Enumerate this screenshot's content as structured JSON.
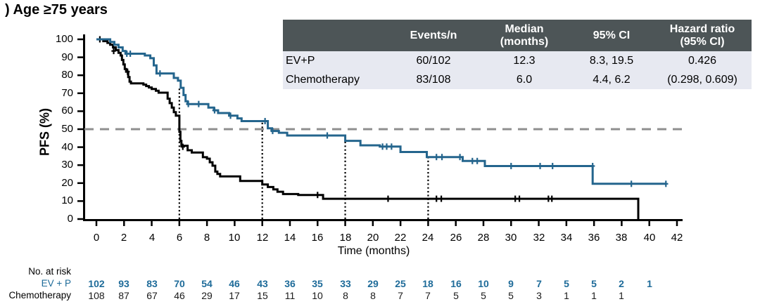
{
  "title": ") Age ≥75 years",
  "colors": {
    "evp_curve": "#24658D",
    "chemo_curve": "#000000",
    "risk_number_blue": "#1E6B99",
    "median_dashed_line": "#8F8F8F",
    "table_header_bg": "#4D5557",
    "table_header_text": "#FFFFFF",
    "table_row_bg": "#E7E9F1"
  },
  "stats_table": {
    "headers": [
      "",
      "Events/n",
      "Median\n(months)",
      "95% CI",
      "Hazard ratio\n(95% CI)"
    ],
    "rows": [
      {
        "cells": [
          "EV+P",
          "60/102",
          "12.3",
          "8.3, 19.5",
          "0.426"
        ]
      },
      {
        "cells": [
          "Chemotherapy",
          "83/108",
          "6.0",
          "4.4, 6.2",
          "(0.298, 0.609)"
        ]
      }
    ]
  },
  "risk_table": {
    "title": "No. at risk",
    "time_step": 2,
    "rows": [
      {
        "label": "EV + P",
        "values": [
          102,
          93,
          83,
          70,
          54,
          46,
          43,
          36,
          35,
          33,
          29,
          25,
          18,
          16,
          10,
          9,
          7,
          5,
          5,
          2,
          1
        ]
      },
      {
        "label": "Chemotherapy",
        "values": [
          108,
          87,
          67,
          46,
          29,
          17,
          15,
          11,
          10,
          8,
          8,
          7,
          7,
          5,
          5,
          5,
          3,
          1,
          1,
          1
        ]
      }
    ]
  },
  "chart_data": {
    "type": "line",
    "subtype": "kaplan-meier-step",
    "title": ") Age ≥75 years",
    "xlabel": "Time (months)",
    "ylabel": "PFS (%)",
    "xlim": [
      0,
      42
    ],
    "ylim": [
      0,
      100
    ],
    "xticks": [
      0,
      2,
      4,
      6,
      8,
      10,
      12,
      14,
      16,
      18,
      20,
      22,
      24,
      26,
      28,
      30,
      32,
      34,
      36,
      38,
      40,
      42
    ],
    "yticks": [
      0,
      10,
      20,
      30,
      40,
      50,
      60,
      70,
      80,
      90,
      100
    ],
    "grid": false,
    "reference_lines": {
      "horizontal_pfs": 50,
      "vertical_dotted": [
        {
          "t": 6,
          "top": 73
        },
        {
          "t": 12,
          "top": 54.5
        },
        {
          "t": 18,
          "top": 43.5
        },
        {
          "t": 24,
          "top": 34.5
        }
      ]
    },
    "series": [
      {
        "name": "EV+P",
        "color": "#24658D",
        "median_months": 12.3,
        "steps": [
          [
            0,
            100
          ],
          [
            1.0,
            98.5
          ],
          [
            1.3,
            97
          ],
          [
            1.6,
            95.5
          ],
          [
            1.9,
            93.5
          ],
          [
            2.1,
            92
          ],
          [
            3.5,
            91
          ],
          [
            3.9,
            89.5
          ],
          [
            4.15,
            85.5
          ],
          [
            4.35,
            81
          ],
          [
            5.6,
            78.5
          ],
          [
            5.9,
            77
          ],
          [
            6.1,
            73
          ],
          [
            6.3,
            69
          ],
          [
            6.45,
            65.5
          ],
          [
            6.6,
            64
          ],
          [
            8.1,
            62
          ],
          [
            8.5,
            60.5
          ],
          [
            8.8,
            59
          ],
          [
            9.6,
            57.5
          ],
          [
            10.2,
            56
          ],
          [
            10.5,
            54.5
          ],
          [
            12.4,
            50.5
          ],
          [
            12.7,
            49
          ],
          [
            13.2,
            48
          ],
          [
            13.8,
            46.5
          ],
          [
            18.0,
            43.5
          ],
          [
            19.1,
            41
          ],
          [
            20.5,
            40.3
          ],
          [
            22.0,
            37.3
          ],
          [
            23.9,
            34.5
          ],
          [
            26.5,
            32.3
          ],
          [
            28.1,
            29.5
          ],
          [
            35.9,
            19.6
          ],
          [
            41.2,
            19.6
          ]
        ],
        "censor_marks": [
          [
            2.2,
            92
          ],
          [
            2.45,
            92
          ],
          [
            4.6,
            81
          ],
          [
            6.65,
            64
          ],
          [
            7.4,
            64
          ],
          [
            8.55,
            60.5
          ],
          [
            9.7,
            57.5
          ],
          [
            12.2,
            54.5
          ],
          [
            12.75,
            49
          ],
          [
            16.7,
            46.5
          ],
          [
            20.7,
            40.3
          ],
          [
            21.0,
            40.3
          ],
          [
            21.35,
            40.3
          ],
          [
            24.6,
            34.5
          ],
          [
            25.0,
            34.5
          ],
          [
            26.3,
            34.5
          ],
          [
            27.2,
            32.3
          ],
          [
            27.55,
            32.3
          ],
          [
            30.0,
            29.5
          ],
          [
            32.1,
            29.5
          ],
          [
            33.0,
            29.5
          ],
          [
            35.9,
            29.5
          ],
          [
            38.7,
            19.6
          ],
          [
            41.2,
            19.6
          ]
        ]
      },
      {
        "name": "Chemotherapy",
        "color": "#000000",
        "median_months": 6.0,
        "steps": [
          [
            0,
            100
          ],
          [
            0.5,
            99
          ],
          [
            0.8,
            98
          ],
          [
            1.0,
            97
          ],
          [
            1.2,
            95.5
          ],
          [
            1.4,
            94
          ],
          [
            1.6,
            92.5
          ],
          [
            1.75,
            91
          ],
          [
            1.85,
            88.5
          ],
          [
            1.95,
            86
          ],
          [
            2.05,
            83.5
          ],
          [
            2.15,
            82
          ],
          [
            2.3,
            79
          ],
          [
            2.4,
            76.5
          ],
          [
            2.5,
            75.5
          ],
          [
            3.4,
            74.8
          ],
          [
            3.6,
            74
          ],
          [
            3.8,
            73.2
          ],
          [
            4.0,
            72.4
          ],
          [
            4.3,
            71.4
          ],
          [
            4.5,
            70.3
          ],
          [
            5.15,
            67
          ],
          [
            5.3,
            64.5
          ],
          [
            5.45,
            62
          ],
          [
            5.6,
            59.5
          ],
          [
            5.75,
            57.5
          ],
          [
            6.0,
            48.5
          ],
          [
            6.08,
            43.5
          ],
          [
            6.15,
            40.8
          ],
          [
            6.6,
            38.3
          ],
          [
            6.9,
            37
          ],
          [
            7.7,
            34.4
          ],
          [
            8.0,
            33.6
          ],
          [
            8.2,
            31.6
          ],
          [
            8.4,
            29.7
          ],
          [
            8.6,
            26.4
          ],
          [
            8.75,
            25.1
          ],
          [
            8.95,
            23.7
          ],
          [
            10.4,
            21.2
          ],
          [
            12.0,
            19.2
          ],
          [
            12.4,
            17.8
          ],
          [
            12.8,
            16.5
          ],
          [
            13.1,
            15.2
          ],
          [
            13.5,
            13.9
          ],
          [
            14.6,
            13.4
          ],
          [
            16.4,
            11.3
          ],
          [
            39.2,
            0
          ]
        ],
        "censor_marks": [
          [
            0.25,
            100
          ],
          [
            1.25,
            93.5
          ],
          [
            2.25,
            82
          ],
          [
            6.25,
            40.2
          ],
          [
            16.0,
            13.4
          ],
          [
            21.1,
            11.3
          ],
          [
            24.6,
            11.3
          ],
          [
            24.95,
            11.3
          ],
          [
            30.3,
            11.3
          ],
          [
            30.6,
            11.3
          ],
          [
            32.7,
            11.3
          ],
          [
            32.95,
            11.3
          ]
        ]
      }
    ]
  }
}
